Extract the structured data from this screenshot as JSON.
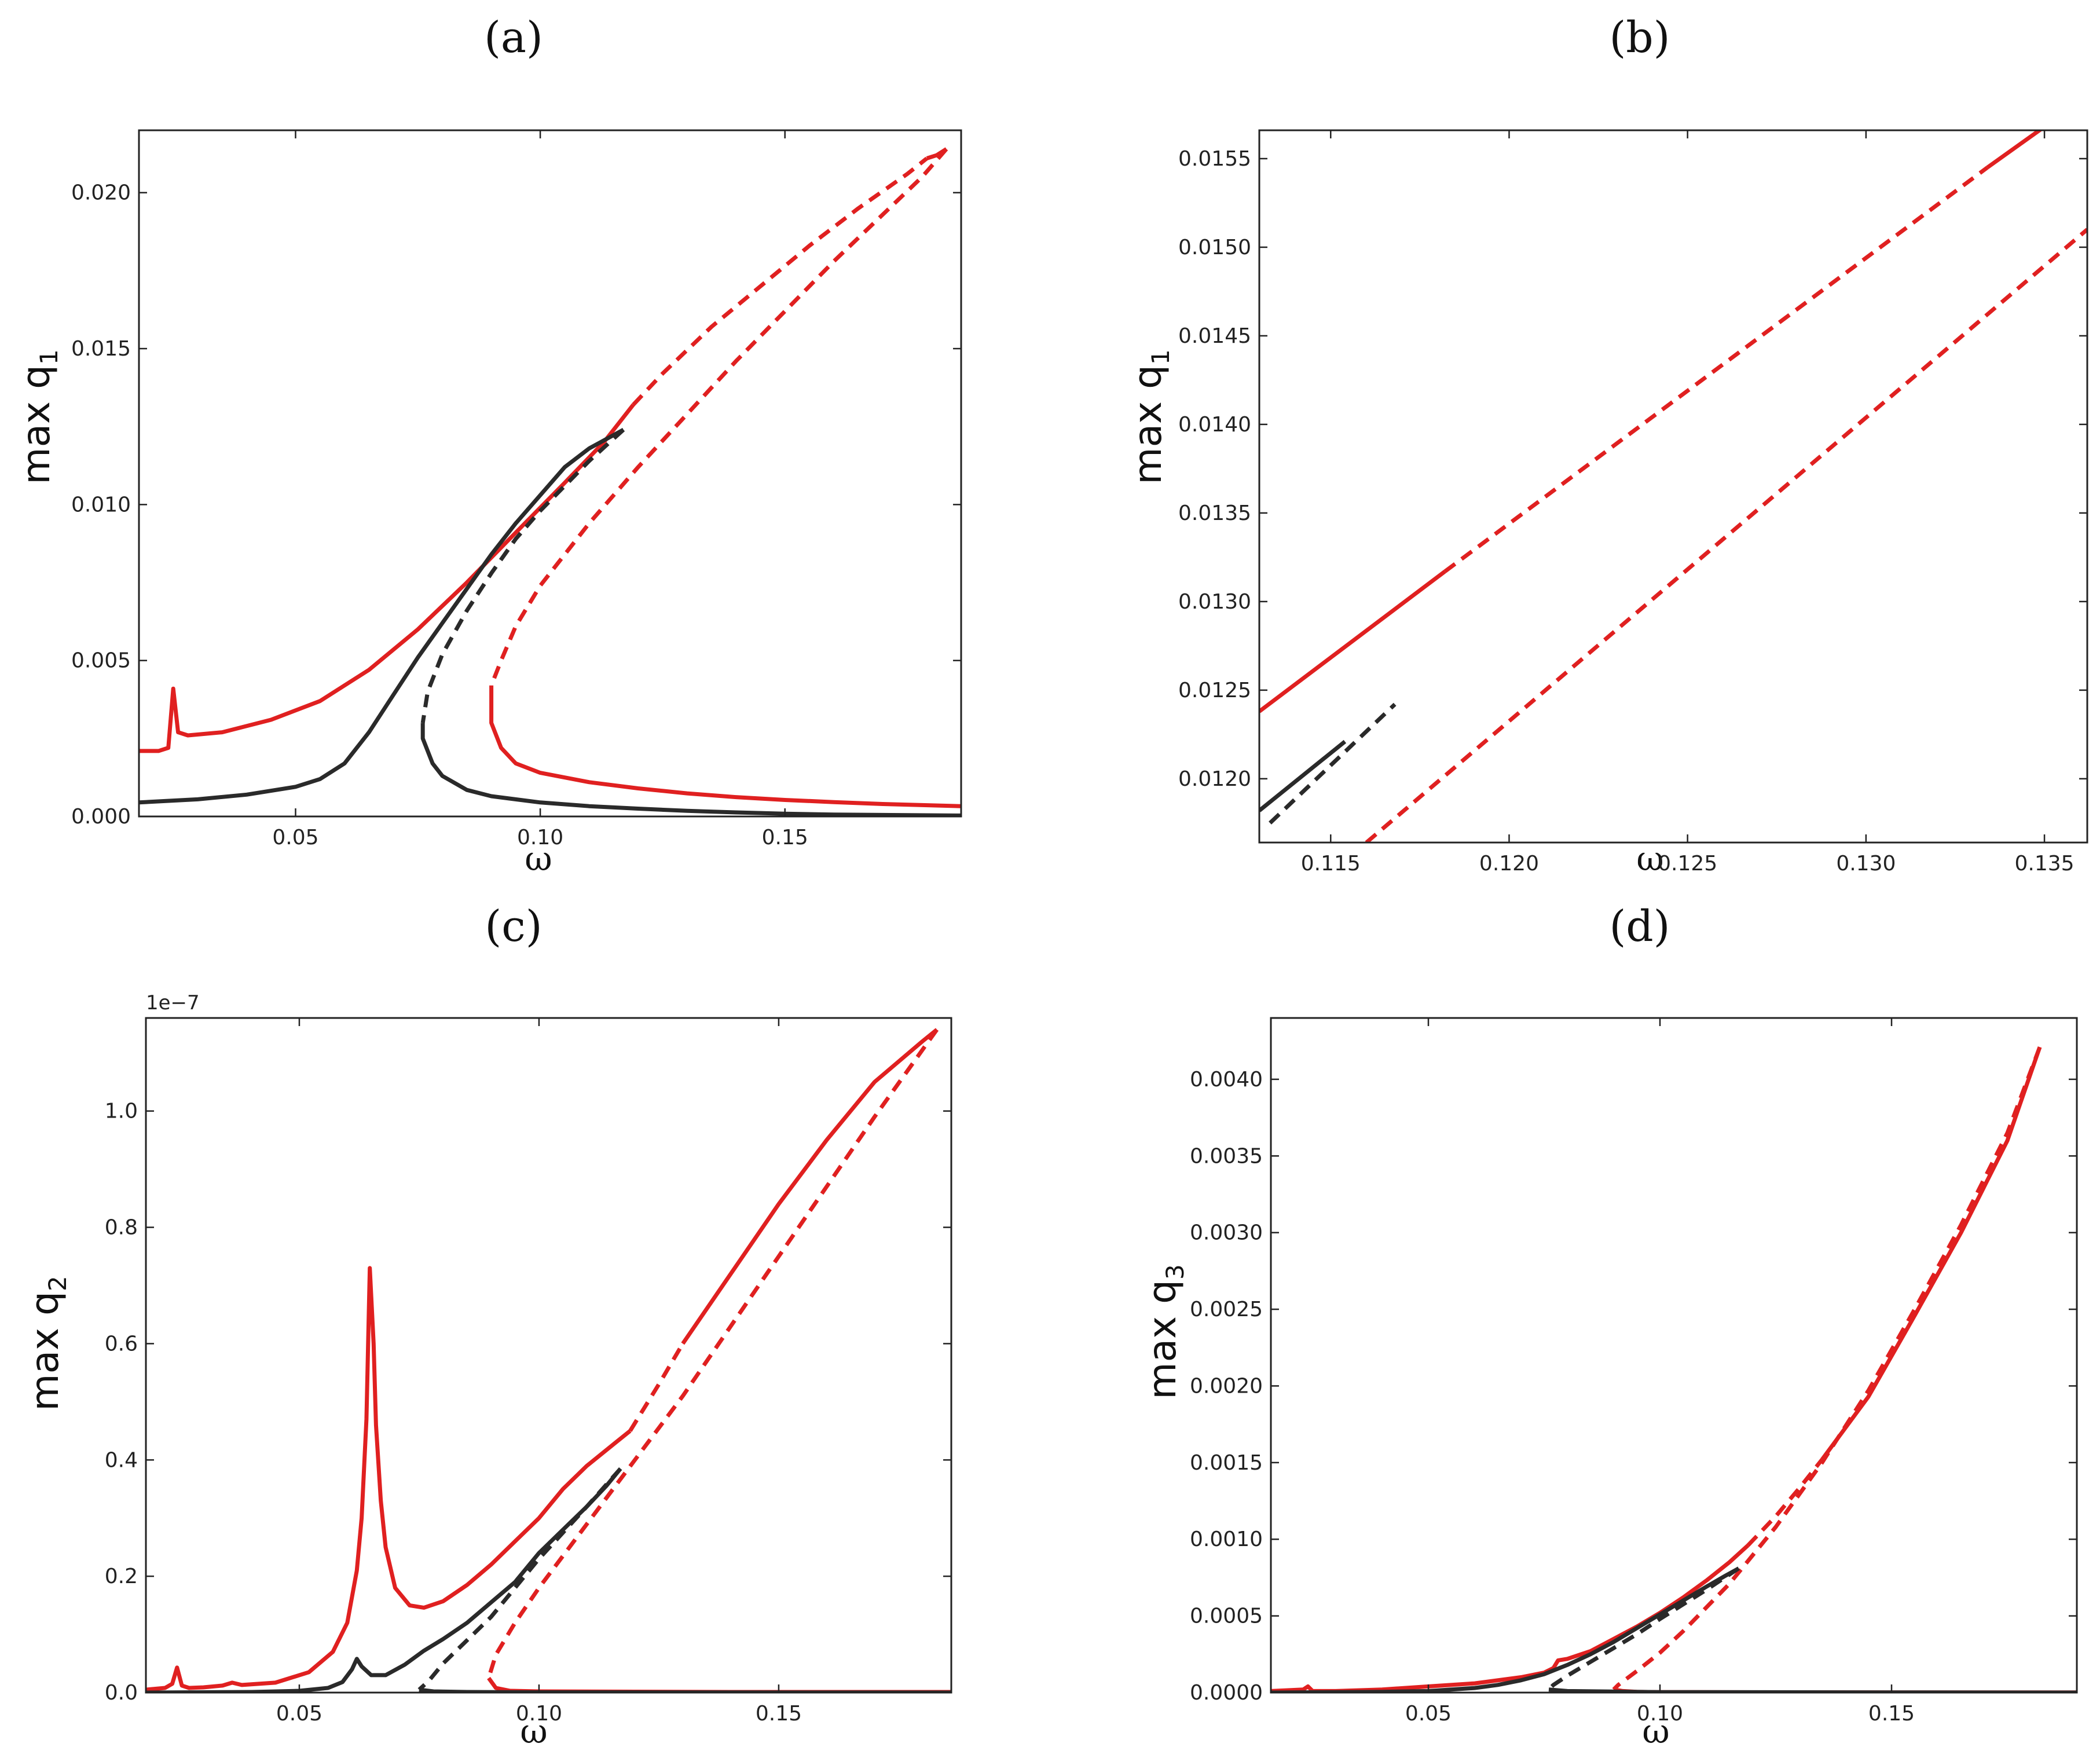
{
  "colors": {
    "red": "#e02020",
    "black": "#2a2a2a"
  },
  "chart_data": [
    {
      "type": "line",
      "panel_label": "(a)",
      "xlabel": "ω",
      "ylabel": "max q",
      "ylabel_sub": "1",
      "xlim": [
        0.018,
        0.186
      ],
      "ylim": [
        0.0,
        0.022
      ],
      "xticks": [
        0.05,
        0.1,
        0.15
      ],
      "xtick_labels": [
        "0.05",
        "0.10",
        "0.15"
      ],
      "yticks": [
        0.0,
        0.005,
        0.01,
        0.015,
        0.02
      ],
      "ytick_labels": [
        "0.000",
        "0.005",
        "0.010",
        "0.015",
        "0.020"
      ],
      "offset_text": "",
      "series": [
        {
          "color": "red",
          "style": "solid",
          "x": [
            0.018,
            0.022,
            0.024,
            0.025,
            0.026,
            0.028,
            0.035,
            0.045,
            0.055,
            0.065,
            0.075,
            0.085,
            0.095,
            0.105,
            0.113,
            0.119
          ],
          "y": [
            0.0021,
            0.0021,
            0.0022,
            0.0041,
            0.0027,
            0.0026,
            0.0027,
            0.0031,
            0.0037,
            0.0047,
            0.006,
            0.0075,
            0.0091,
            0.0107,
            0.012,
            0.0132
          ]
        },
        {
          "color": "red",
          "style": "dashed",
          "x": [
            0.119,
            0.125,
            0.135,
            0.145,
            0.155,
            0.165,
            0.175,
            0.179
          ],
          "y": [
            0.0132,
            0.0142,
            0.0157,
            0.017,
            0.0183,
            0.0195,
            0.0206,
            0.0211
          ]
        },
        {
          "color": "red",
          "style": "solid",
          "x": [
            0.179,
            0.181,
            0.182,
            0.183
          ],
          "y": [
            0.0211,
            0.0212,
            0.0213,
            0.0214
          ]
        },
        {
          "color": "red",
          "style": "dashed",
          "x": [
            0.183,
            0.178,
            0.17,
            0.16,
            0.15,
            0.14,
            0.13,
            0.12,
            0.11,
            0.1,
            0.095,
            0.092,
            0.09
          ],
          "y": [
            0.0214,
            0.0205,
            0.0193,
            0.0178,
            0.0162,
            0.0146,
            0.0129,
            0.0112,
            0.0094,
            0.0074,
            0.0061,
            0.005,
            0.0042
          ]
        },
        {
          "color": "red",
          "style": "solid",
          "x": [
            0.09,
            0.09,
            0.092,
            0.095,
            0.1,
            0.11,
            0.12,
            0.13,
            0.14,
            0.15,
            0.16,
            0.17,
            0.186
          ],
          "y": [
            0.0042,
            0.003,
            0.0022,
            0.0017,
            0.0014,
            0.0011,
            0.0009,
            0.00074,
            0.00062,
            0.00053,
            0.00046,
            0.0004,
            0.00033
          ]
        },
        {
          "color": "black",
          "style": "solid",
          "x": [
            0.018,
            0.03,
            0.04,
            0.05,
            0.055,
            0.06,
            0.065,
            0.07,
            0.075,
            0.08,
            0.085,
            0.09,
            0.095,
            0.1,
            0.105,
            0.11,
            0.117
          ],
          "y": [
            0.00045,
            0.00055,
            0.0007,
            0.00095,
            0.0012,
            0.0017,
            0.0027,
            0.0039,
            0.0051,
            0.0062,
            0.0073,
            0.0084,
            0.0094,
            0.0103,
            0.0112,
            0.0118,
            0.0124
          ]
        },
        {
          "color": "black",
          "style": "dashed",
          "x": [
            0.117,
            0.11,
            0.1,
            0.095,
            0.09,
            0.085,
            0.08,
            0.077,
            0.076
          ],
          "y": [
            0.0124,
            0.0114,
            0.0098,
            0.0089,
            0.0078,
            0.0066,
            0.0052,
            0.004,
            0.003
          ]
        },
        {
          "color": "black",
          "style": "solid",
          "x": [
            0.076,
            0.076,
            0.078,
            0.08,
            0.085,
            0.09,
            0.1,
            0.11,
            0.12,
            0.13,
            0.14,
            0.15,
            0.16,
            0.186
          ],
          "y": [
            0.003,
            0.0025,
            0.0017,
            0.0013,
            0.00085,
            0.00065,
            0.00045,
            0.00033,
            0.00025,
            0.00018,
            0.00013,
            9e-05,
            6e-05,
            3e-05
          ]
        }
      ]
    },
    {
      "type": "line",
      "panel_label": "(b)",
      "xlabel": "ω",
      "ylabel": "max q",
      "ylabel_sub": "1",
      "xlim": [
        0.113,
        0.1362
      ],
      "ylim": [
        0.01164,
        0.01566
      ],
      "xticks": [
        0.115,
        0.12,
        0.125,
        0.13,
        0.135
      ],
      "xtick_labels": [
        "0.115",
        "0.120",
        "0.125",
        "0.130",
        "0.135"
      ],
      "yticks": [
        0.012,
        0.0125,
        0.013,
        0.0135,
        0.014,
        0.0145,
        0.015,
        0.0155
      ],
      "ytick_labels": [
        "0.0120",
        "0.0125",
        "0.0130",
        "0.0135",
        "0.0140",
        "0.0145",
        "0.0150",
        "0.0155"
      ],
      "offset_text": "",
      "series": [
        {
          "color": "red",
          "style": "solid",
          "x": [
            0.113,
            0.1182
          ],
          "y": [
            0.01238,
            0.01317
          ]
        },
        {
          "color": "red",
          "style": "dashed",
          "x": [
            0.1182,
            0.1334
          ],
          "y": [
            0.01317,
            0.01545
          ]
        },
        {
          "color": "red",
          "style": "solid",
          "x": [
            0.1334,
            0.135
          ],
          "y": [
            0.01545,
            0.01568
          ]
        },
        {
          "color": "red",
          "style": "dashed",
          "x": [
            0.116,
            0.1362
          ],
          "y": [
            0.01164,
            0.0151
          ]
        },
        {
          "color": "black",
          "style": "solid",
          "x": [
            0.113,
            0.1154
          ],
          "y": [
            0.01182,
            0.01221
          ]
        },
        {
          "color": "black",
          "style": "dashed",
          "x": [
            0.1133,
            0.1168
          ],
          "y": [
            0.01175,
            0.01242
          ]
        }
      ]
    },
    {
      "type": "line",
      "panel_label": "(c)",
      "xlabel": "ω",
      "ylabel": "max q",
      "ylabel_sub": "2",
      "xlim": [
        0.018,
        0.186
      ],
      "ylim": [
        0.0,
        1.16
      ],
      "xticks": [
        0.05,
        0.1,
        0.15
      ],
      "xtick_labels": [
        "0.05",
        "0.10",
        "0.15"
      ],
      "yticks": [
        0.0,
        0.2,
        0.4,
        0.6,
        0.8,
        1.0
      ],
      "ytick_labels": [
        "0.0",
        "0.2",
        "0.4",
        "0.6",
        "0.8",
        "1.0"
      ],
      "offset_text": "1e−7",
      "series": [
        {
          "color": "red",
          "style": "solid",
          "x": [
            0.018,
            0.022,
            0.0235,
            0.0245,
            0.0255,
            0.027,
            0.03,
            0.034,
            0.036,
            0.038,
            0.045,
            0.052,
            0.057,
            0.06,
            0.062,
            0.063,
            0.064,
            0.0647,
            0.0655,
            0.066,
            0.067,
            0.068,
            0.07,
            0.073,
            0.076,
            0.08,
            0.085,
            0.09,
            0.095,
            0.1,
            0.105,
            0.11,
            0.116,
            0.119
          ],
          "y": [
            0.005,
            0.008,
            0.015,
            0.043,
            0.012,
            0.008,
            0.009,
            0.012,
            0.017,
            0.013,
            0.017,
            0.035,
            0.07,
            0.12,
            0.21,
            0.3,
            0.47,
            0.73,
            0.6,
            0.46,
            0.33,
            0.25,
            0.18,
            0.15,
            0.146,
            0.157,
            0.185,
            0.22,
            0.26,
            0.3,
            0.35,
            0.39,
            0.43,
            0.45
          ]
        },
        {
          "color": "red",
          "style": "dashed",
          "x": [
            0.119,
            0.125,
            0.13
          ],
          "y": [
            0.45,
            0.53,
            0.6
          ]
        },
        {
          "color": "red",
          "style": "solid",
          "x": [
            0.13,
            0.14,
            0.15,
            0.16,
            0.17,
            0.18,
            0.183
          ],
          "y": [
            0.6,
            0.72,
            0.84,
            0.95,
            1.05,
            1.12,
            1.14
          ]
        },
        {
          "color": "red",
          "style": "dashed",
          "x": [
            0.183,
            0.17,
            0.16,
            0.15,
            0.14,
            0.13,
            0.12,
            0.11,
            0.1,
            0.095,
            0.091,
            0.0895
          ],
          "y": [
            1.14,
            0.99,
            0.87,
            0.75,
            0.63,
            0.51,
            0.4,
            0.29,
            0.18,
            0.12,
            0.065,
            0.025
          ]
        },
        {
          "color": "red",
          "style": "solid",
          "x": [
            0.0895,
            0.091,
            0.094,
            0.1,
            0.12,
            0.14,
            0.16,
            0.186
          ],
          "y": [
            0.025,
            0.008,
            0.003,
            0.002,
            0.0015,
            0.001,
            0.001,
            0.001
          ]
        },
        {
          "color": "black",
          "style": "solid",
          "x": [
            0.018,
            0.04,
            0.05,
            0.056,
            0.059,
            0.061,
            0.062,
            0.063,
            0.065,
            0.068,
            0.072,
            0.076,
            0.08,
            0.085,
            0.09,
            0.095,
            0.1,
            0.105,
            0.11,
            0.114,
            0.117
          ],
          "y": [
            0.0,
            0.001,
            0.003,
            0.008,
            0.018,
            0.04,
            0.058,
            0.045,
            0.03,
            0.03,
            0.048,
            0.072,
            0.092,
            0.12,
            0.155,
            0.19,
            0.24,
            0.28,
            0.32,
            0.355,
            0.385
          ]
        },
        {
          "color": "black",
          "style": "dashed",
          "x": [
            0.117,
            0.11,
            0.1,
            0.095,
            0.09,
            0.085,
            0.08,
            0.077,
            0.075
          ],
          "y": [
            0.385,
            0.32,
            0.23,
            0.18,
            0.13,
            0.09,
            0.05,
            0.02,
            0.005
          ]
        },
        {
          "color": "black",
          "style": "solid",
          "x": [
            0.075,
            0.078,
            0.085,
            0.1,
            0.186
          ],
          "y": [
            0.005,
            0.002,
            0.001,
            0.0005,
            0.0
          ]
        }
      ]
    },
    {
      "type": "line",
      "panel_label": "(d)",
      "xlabel": "ω",
      "ylabel": "max q",
      "ylabel_sub": "3",
      "xlim": [
        0.016,
        0.19
      ],
      "ylim": [
        0.0,
        0.0044
      ],
      "xticks": [
        0.05,
        0.1,
        0.15
      ],
      "xtick_labels": [
        "0.05",
        "0.10",
        "0.15"
      ],
      "yticks": [
        0.0,
        0.0005,
        0.001,
        0.0015,
        0.002,
        0.0025,
        0.003,
        0.0035,
        0.004
      ],
      "ytick_labels": [
        "0.0000",
        "0.0005",
        "0.0010",
        "0.0015",
        "0.0020",
        "0.0025",
        "0.0030",
        "0.0035",
        "0.0040"
      ],
      "offset_text": "",
      "series": [
        {
          "color": "red",
          "style": "solid",
          "x": [
            0.016,
            0.023,
            0.024,
            0.025,
            0.03,
            0.04,
            0.05,
            0.06,
            0.07,
            0.075,
            0.077,
            0.078,
            0.08,
            0.085,
            0.09,
            0.095,
            0.1,
            0.105,
            0.11,
            0.115,
            0.119
          ],
          "y": [
            1e-05,
            2e-05,
            4e-05,
            1e-05,
            1e-05,
            2e-05,
            4e-05,
            6e-05,
            0.0001,
            0.00013,
            0.00016,
            0.00021,
            0.00022,
            0.00027,
            0.00035,
            0.00043,
            0.00052,
            0.00062,
            0.00073,
            0.00085,
            0.00096
          ]
        },
        {
          "color": "red",
          "style": "dashed",
          "x": [
            0.119,
            0.125,
            0.13,
            0.135
          ],
          "y": [
            0.00096,
            0.00115,
            0.00133,
            0.00152
          ]
        },
        {
          "color": "red",
          "style": "solid",
          "x": [
            0.135,
            0.145,
            0.155,
            0.165,
            0.175,
            0.182
          ],
          "y": [
            0.00152,
            0.00193,
            0.00246,
            0.003,
            0.0036,
            0.00421
          ]
        },
        {
          "color": "red",
          "style": "dashed",
          "x": [
            0.182,
            0.175,
            0.165,
            0.155,
            0.145,
            0.135,
            0.125,
            0.115,
            0.105,
            0.1,
            0.095,
            0.091,
            0.09
          ],
          "y": [
            0.00421,
            0.00365,
            0.00305,
            0.0025,
            0.00197,
            0.0015,
            0.00108,
            0.00071,
            0.0004,
            0.00026,
            0.00014,
            5e-05,
            2e-05
          ]
        },
        {
          "color": "red",
          "style": "solid",
          "x": [
            0.09,
            0.092,
            0.095,
            0.1,
            0.12,
            0.15,
            0.19
          ],
          "y": [
            2e-05,
            1e-05,
            5e-06,
            3e-06,
            2e-06,
            1e-06,
            1e-06
          ]
        },
        {
          "color": "black",
          "style": "solid",
          "x": [
            0.016,
            0.04,
            0.05,
            0.06,
            0.065,
            0.07,
            0.075,
            0.08,
            0.085,
            0.09,
            0.095,
            0.1,
            0.105,
            0.11,
            0.114,
            0.117
          ],
          "y": [
            0.0,
            5e-06,
            1e-05,
            3e-05,
            5e-05,
            8e-05,
            0.00012,
            0.00018,
            0.00025,
            0.00033,
            0.00042,
            0.00051,
            0.0006,
            0.00069,
            0.00076,
            0.00081
          ]
        },
        {
          "color": "black",
          "style": "dashed",
          "x": [
            0.117,
            0.11,
            0.1,
            0.095,
            0.09,
            0.085,
            0.08,
            0.077,
            0.076
          ],
          "y": [
            0.00081,
            0.00067,
            0.00048,
            0.00038,
            0.00029,
            0.0002,
            0.00011,
            5e-05,
            2e-05
          ]
        },
        {
          "color": "black",
          "style": "solid",
          "x": [
            0.076,
            0.08,
            0.1,
            0.15,
            0.19
          ],
          "y": [
            2e-05,
            1e-05,
            3e-06,
            1e-06,
            0.0
          ]
        }
      ]
    }
  ]
}
